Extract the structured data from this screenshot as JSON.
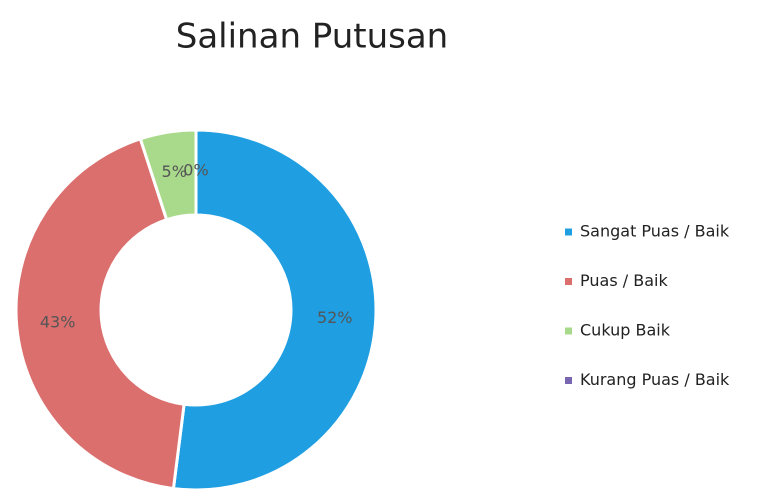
{
  "chart_data": {
    "type": "pie",
    "title": "Salinan Putusan",
    "categories": [
      "Sangat Puas / Baik",
      "Puas / Baik",
      "Cukup Baik",
      "Kurang Puas / Baik"
    ],
    "values": [
      52,
      43,
      5,
      0
    ],
    "value_labels": [
      "52%",
      "43%",
      "5%",
      "0%"
    ],
    "colors": [
      "#1f9fe2",
      "#da6f6e",
      "#a9d98a",
      "#7866b0"
    ],
    "legend": "right"
  }
}
